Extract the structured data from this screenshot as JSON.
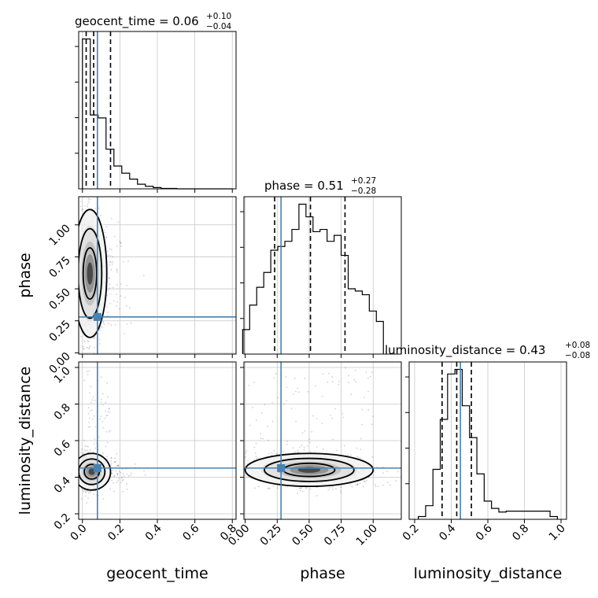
{
  "chart_data": {
    "type": "corner",
    "parameters": [
      "geocent_time",
      "phase",
      "luminosity_distance"
    ],
    "truths": {
      "geocent_time": 0.08,
      "phase": 0.28,
      "luminosity_distance": 0.45
    },
    "truth_color": "#4682b4",
    "titles": {
      "geocent_time": {
        "name": "geocent_time",
        "median": "0.06",
        "plus": "+0.10",
        "minus": "−0.04"
      },
      "phase": {
        "name": "phase",
        "median": "0.51",
        "plus": "+0.27",
        "minus": "−0.28"
      },
      "luminosity_distance": {
        "name": "luminosity_distance",
        "median": "0.43",
        "plus": "+0.08",
        "minus": "−0.08"
      }
    },
    "axis_labels": {
      "x": [
        "geocent_time",
        "phase",
        "luminosity_distance"
      ],
      "y": [
        "phase",
        "luminosity_distance"
      ]
    },
    "ranges": {
      "geocent_time": [
        -0.02,
        0.82
      ],
      "phase": [
        -0.01,
        1.22
      ],
      "luminosity_distance": [
        0.17,
        1.03
      ]
    },
    "ticks": {
      "geocent_time": {
        "values": [
          0.0,
          0.2,
          0.4,
          0.6,
          0.8
        ],
        "labels": [
          "0.0",
          "0.2",
          "0.4",
          "0.6",
          "0.8"
        ]
      },
      "phase": {
        "values": [
          0.0,
          0.25,
          0.5,
          0.75,
          1.0
        ],
        "labels": [
          "0.00",
          "0.25",
          "0.50",
          "0.75",
          "1.00"
        ]
      },
      "luminosity_distance": {
        "values": [
          0.2,
          0.4,
          0.6,
          0.8,
          1.0
        ],
        "labels": [
          "0.2",
          "0.4",
          "0.6",
          "0.8",
          "1.0"
        ]
      }
    },
    "grid": true,
    "histograms": {
      "geocent_time": {
        "edges": [
          0.0,
          0.042,
          0.084,
          0.126,
          0.168,
          0.21,
          0.252,
          0.294,
          0.336,
          0.378,
          0.42,
          0.462,
          0.504,
          0.546,
          0.588,
          0.63,
          0.672,
          0.714,
          0.756,
          0.798
        ],
        "counts": [
          355,
          175,
          168,
          94,
          54,
          37,
          23,
          11,
          6,
          3,
          1,
          1,
          0,
          0,
          0,
          0,
          0,
          0,
          0
        ],
        "quantiles": [
          0.02,
          0.06,
          0.15
        ]
      },
      "phase": {
        "edges": [
          -0.02,
          0.035,
          0.09,
          0.145,
          0.2,
          0.255,
          0.31,
          0.365,
          0.42,
          0.475,
          0.53,
          0.585,
          0.64,
          0.695,
          0.75,
          0.805,
          0.86,
          0.915,
          0.97,
          1.025,
          1.08
        ],
        "counts": [
          33,
          66,
          90,
          110,
          140,
          145,
          152,
          168,
          202,
          185,
          165,
          168,
          152,
          160,
          133,
          88,
          85,
          80,
          58,
          44
        ],
        "quantiles": [
          0.23,
          0.51,
          0.78
        ]
      },
      "luminosity_distance": {
        "edges": [
          0.22,
          0.26,
          0.3,
          0.34,
          0.38,
          0.42,
          0.46,
          0.5,
          0.54,
          0.58,
          0.62,
          0.66,
          0.7,
          0.74,
          0.78,
          0.82,
          0.86,
          0.9,
          0.94,
          0.98
        ],
        "counts": [
          3,
          15,
          55,
          110,
          160,
          165,
          125,
          90,
          50,
          20,
          12,
          8,
          9,
          9,
          9,
          9,
          9,
          9,
          3
        ],
        "quantiles": [
          0.35,
          0.43,
          0.51
        ]
      }
    },
    "densities": {
      "phase_vs_geocent_time": {
        "center": [
          0.04,
          0.62
        ],
        "sigma": [
          0.045,
          0.25
        ],
        "tail_x": 0.12
      },
      "luminosity_distance_vs_geocent_time": {
        "center": [
          0.05,
          0.43
        ],
        "sigma": [
          0.05,
          0.05
        ],
        "tail_x": 0.12
      },
      "luminosity_distance_vs_phase": {
        "center": [
          0.5,
          0.44
        ],
        "sigma": [
          0.25,
          0.045
        ],
        "slope": -0.05
      }
    }
  }
}
